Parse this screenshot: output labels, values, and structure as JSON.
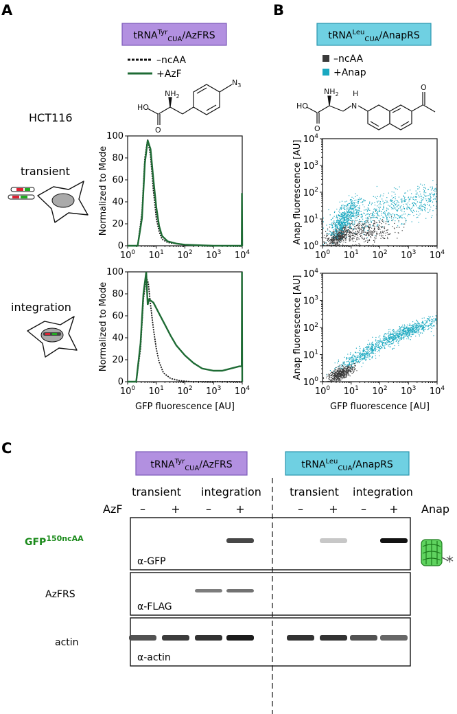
{
  "panel_a": {
    "letter": "A",
    "construct": {
      "pre": "tRNA",
      "sup": "Tyr",
      "sub": "CUA",
      "post": "/AzFRS"
    },
    "legend": [
      {
        "label": "–ncAA",
        "style": "dashed"
      },
      {
        "label": "+AzF",
        "style": "solid"
      }
    ],
    "cell_line": "HCT116",
    "chemical": {
      "acid": "HO",
      "amine": "NH",
      "amine_sub": "2",
      "azide": "N",
      "azide_sub": "3",
      "carbonyl": "O"
    },
    "row_labels": [
      "transient",
      "integration"
    ],
    "ylabel": "Normalized to Mode",
    "xlabel": "GFP fluorescence  [AU]"
  },
  "panel_b": {
    "letter": "B",
    "construct": {
      "pre": "tRNA",
      "sup": "Leu",
      "sub": "CUA",
      "post": "/AnapRS"
    },
    "legend": [
      {
        "label": "–ncAA",
        "color": "#3a3a3a"
      },
      {
        "label": "+Anap",
        "color": "#1aa8c0"
      }
    ],
    "chemical": {
      "acid": "HO",
      "amine": "NH",
      "amine_sub": "2",
      "nh": "H",
      "n": "N",
      "carbonyl": "O",
      "carbonyl2": "O"
    },
    "ylabel": "Anap fluorescence  [AU]",
    "xlabel": "GFP fluorescence  [AU]"
  },
  "panel_c": {
    "letter": "C",
    "construct_left": {
      "pre": "tRNA",
      "sup": "Tyr",
      "sub": "CUA",
      "post": "/AzFRS"
    },
    "construct_right": {
      "pre": "tRNA",
      "sup": "Leu",
      "sub": "CUA",
      "post": "/AnapRS"
    },
    "conditions": [
      "transient",
      "integration",
      "transient",
      "integration"
    ],
    "left_row_label": "AzF",
    "right_row_label": "Anap",
    "signs": [
      "–",
      "+",
      "–",
      "+",
      "–",
      "+",
      "–",
      "+"
    ],
    "blots": [
      {
        "label_pre": "GFP",
        "label_sup": "150ncAA",
        "antibody": "α-GFP",
        "color": "#1a8a1a"
      },
      {
        "label": "AzFRS",
        "antibody": "α-FLAG"
      },
      {
        "label": "actin",
        "antibody": "α-actin"
      }
    ],
    "band_intensity": {
      "gfp": [
        0,
        0,
        0,
        0.75,
        0,
        0.15,
        0,
        1.0
      ],
      "flag": [
        0,
        0,
        0.5,
        0.55,
        0,
        0,
        0,
        0
      ],
      "actin": [
        0.7,
        0.8,
        0.85,
        0.95,
        0.85,
        0.85,
        0.7,
        0.6
      ]
    }
  },
  "histograms": {
    "type": "line",
    "xlabel": "GFP fluorescence  [AU]",
    "ylabel": "Normalized to Mode",
    "x_ticks": [
      "10",
      "10",
      "10",
      "10",
      "10"
    ],
    "x_tick_exp": [
      "0",
      "1",
      "2",
      "3",
      "4"
    ],
    "y_ticks": [
      "0",
      "20",
      "40",
      "60",
      "80",
      "100"
    ],
    "xlim_log10": [
      0,
      4
    ],
    "ylim": [
      0,
      100
    ],
    "plots": [
      {
        "name": "transient",
        "series": [
          {
            "name": "–ncAA",
            "style": "dashed",
            "x_log": [
              0,
              0.35,
              0.5,
              0.6,
              0.7,
              0.8,
              0.9,
              1.0,
              1.1,
              1.2,
              1.4,
              1.7,
              2.0,
              3.0,
              3.98
            ],
            "y": [
              0,
              0,
              30,
              80,
              97,
              82,
              50,
              25,
              13,
              6,
              3,
              2,
              1,
              0,
              0
            ]
          },
          {
            "name": "+AzF",
            "style": "solid",
            "x_log": [
              0,
              0.35,
              0.5,
              0.6,
              0.7,
              0.8,
              0.9,
              1.0,
              1.1,
              1.2,
              1.4,
              1.7,
              2.0,
              3.0,
              3.98,
              3.99,
              4.0
            ],
            "y": [
              0,
              0,
              25,
              75,
              96,
              88,
              60,
              35,
              18,
              9,
              4,
              2,
              1,
              0,
              0,
              48,
              0
            ]
          }
        ]
      },
      {
        "name": "integration",
        "series": [
          {
            "name": "–ncAA",
            "style": "dashed",
            "x_log": [
              0,
              0.3,
              0.45,
              0.55,
              0.65,
              0.72,
              0.8,
              0.9,
              1.0,
              1.1,
              1.25,
              1.5,
              1.8,
              2.2,
              3.0,
              3.98
            ],
            "y": [
              0,
              0,
              30,
              75,
              95,
              90,
              70,
              48,
              30,
              18,
              8,
              3,
              1,
              0,
              0,
              0
            ]
          },
          {
            "name": "+AzF",
            "style": "solid",
            "x_log": [
              0,
              0.3,
              0.45,
              0.55,
              0.65,
              0.7,
              0.75,
              0.9,
              1.1,
              1.3,
              1.5,
              1.7,
              2.0,
              2.3,
              2.6,
              3.0,
              3.3,
              3.6,
              3.9,
              3.98,
              3.99,
              4.0
            ],
            "y": [
              0,
              0,
              35,
              80,
              100,
              70,
              75,
              72,
              62,
              52,
              42,
              33,
              24,
              17,
              12,
              10,
              10,
              12,
              14,
              14,
              100,
              0
            ]
          }
        ]
      }
    ]
  },
  "scatter_plots": {
    "type": "scatter",
    "xlabel": "GFP fluorescence  [AU]",
    "ylabel": "Anap fluorescence  [AU]",
    "x_ticks": [
      "10",
      "10",
      "10",
      "10",
      "10"
    ],
    "x_tick_exp": [
      "0",
      "1",
      "2",
      "3",
      "4"
    ],
    "y_ticks": [
      "10",
      "10",
      "10",
      "10",
      "10"
    ],
    "y_tick_exp": [
      "0",
      "1",
      "2",
      "3",
      "4"
    ],
    "xlim_log10": [
      0,
      4
    ],
    "ylim_log10": [
      0,
      4
    ],
    "plots": [
      {
        "name": "transient",
        "series": [
          {
            "name": "–ncAA",
            "color": "#3a3a3a",
            "clusters": [
              {
                "cx": 0.55,
                "cy": 0.35,
                "sx": 0.22,
                "sy": 0.18,
                "r": 0.6,
                "n": 450
              },
              {
                "cx": 1.4,
                "cy": 0.55,
                "sx": 0.55,
                "sy": 0.25,
                "r": 0.25,
                "n": 420
              }
            ]
          },
          {
            "name": "+Anap",
            "color": "#1aa8c0",
            "clusters": [
              {
                "cx": 0.75,
                "cy": 1.05,
                "sx": 0.25,
                "sy": 0.35,
                "r": 0.7,
                "n": 520
              },
              {
                "cx": 2.3,
                "cy": 1.35,
                "sx": 0.9,
                "sy": 0.35,
                "r": 0.55,
                "n": 520
              },
              {
                "cx": 3.6,
                "cy": 1.8,
                "sx": 0.3,
                "sy": 0.3,
                "r": 0.5,
                "n": 120
              }
            ]
          }
        ]
      },
      {
        "name": "integration",
        "series": [
          {
            "name": "–ncAA",
            "color": "#3a3a3a",
            "clusters": [
              {
                "cx": 0.6,
                "cy": 0.3,
                "sx": 0.22,
                "sy": 0.15,
                "r": 0.6,
                "n": 520
              }
            ]
          },
          {
            "name": "+Anap",
            "color": "#1aa8c0",
            "clusters": [
              {
                "cx": 1.4,
                "cy": 1.0,
                "sx": 0.4,
                "sy": 0.25,
                "r": 0.85,
                "n": 380
              },
              {
                "cx": 2.9,
                "cy": 1.85,
                "sx": 0.55,
                "sy": 0.25,
                "r": 0.85,
                "n": 720
              }
            ]
          }
        ]
      }
    ]
  }
}
